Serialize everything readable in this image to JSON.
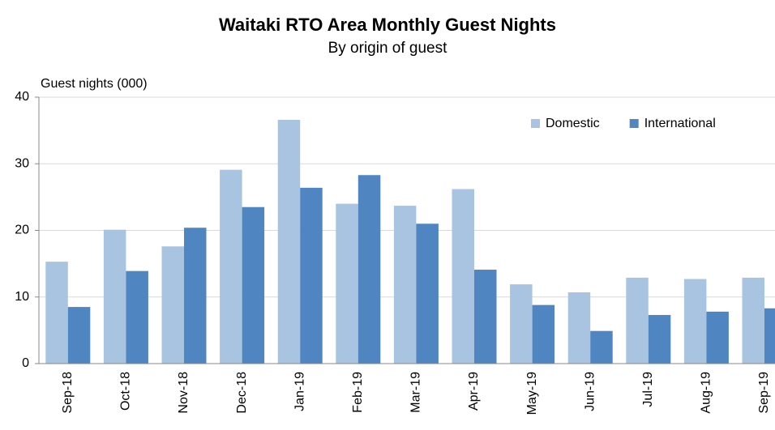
{
  "chart_data": {
    "type": "bar",
    "title": "Waitaki RTO Area Monthly Guest Nights",
    "subtitle": "By origin  of guest",
    "y_label": "Guest nights (000)",
    "categories": [
      "Sep-18",
      "Oct-18",
      "Nov-18",
      "Dec-18",
      "Jan-19",
      "Feb-19",
      "Mar-19",
      "Apr-19",
      "May-19",
      "Jun-19",
      "Jul-19",
      "Aug-19",
      "Sep-19"
    ],
    "series": [
      {
        "name": "Domestic",
        "color": "#a9c4e0",
        "values": [
          15.3,
          20.1,
          17.6,
          29.1,
          36.6,
          24.0,
          23.7,
          26.2,
          11.9,
          10.7,
          12.9,
          12.7,
          12.9
        ]
      },
      {
        "name": "International",
        "color": "#4f86c2",
        "values": [
          8.5,
          13.9,
          20.4,
          23.5,
          26.4,
          28.3,
          21.0,
          14.1,
          8.8,
          4.9,
          7.3,
          7.8,
          8.3
        ]
      }
    ],
    "ylim": [
      0,
      40
    ],
    "yticks": [
      0,
      10,
      20,
      30,
      40
    ],
    "grid": true,
    "legend": "top-right"
  }
}
